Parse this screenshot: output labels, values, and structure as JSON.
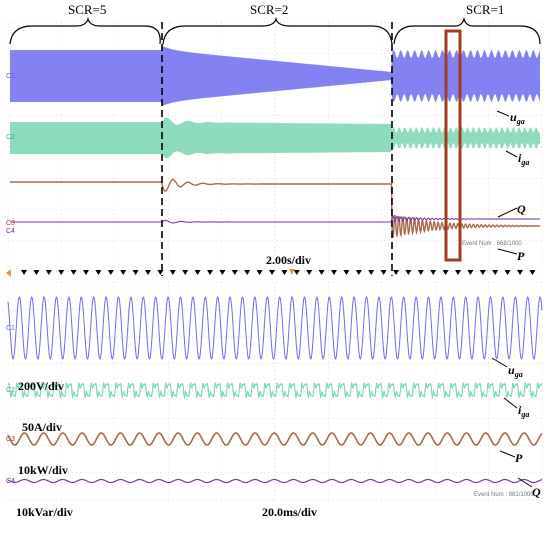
{
  "regions": {
    "scr5": "SCR=5",
    "scr2": "SCR=2",
    "scr1": "SCR=1"
  },
  "top_panel": {
    "timebase": "2.00s/div",
    "event": "Event Num : 668/1000",
    "channel_tags": [
      "C1",
      "C2",
      "C3",
      "C4"
    ]
  },
  "bottom_panel": {
    "timebase": "20.0ms/div",
    "event": "Event Num : 881/1000",
    "scale_labels": [
      "200V/div",
      "50A/div",
      "10kW/div",
      "10kVar/div"
    ],
    "channel_tags": [
      "C1",
      "C2",
      "C3",
      "C4"
    ]
  },
  "signals_top": [
    {
      "base": "u",
      "sub": "ga"
    },
    {
      "base": "i",
      "sub": "ga"
    },
    {
      "base": "Q",
      "sub": ""
    },
    {
      "base": "P",
      "sub": ""
    }
  ],
  "signals_bottom": [
    {
      "base": "u",
      "sub": "ga"
    },
    {
      "base": "i",
      "sub": "ga"
    },
    {
      "base": "P",
      "sub": ""
    },
    {
      "base": "Q",
      "sub": ""
    }
  ],
  "colors": {
    "voltage": "#6d6cf0",
    "current": "#79d7b1",
    "power": "#a86a4c",
    "reactive": "#7a3a9c",
    "highlight_box": "#a23c1e",
    "grid": "#c8c8c8"
  },
  "chart_data": [
    {
      "type": "line",
      "title": "",
      "xlabel": "2.00s/div",
      "series": [
        {
          "name": "uga"
        },
        {
          "name": "iga"
        },
        {
          "name": "Q"
        },
        {
          "name": "P"
        }
      ],
      "grid": true
    },
    {
      "type": "line",
      "title": "",
      "xlabel": "20.0ms/div",
      "series": [
        {
          "name": "uga",
          "scale": "200V/div"
        },
        {
          "name": "iga",
          "scale": "50A/div"
        },
        {
          "name": "P",
          "scale": "10kW/div"
        },
        {
          "name": "Q",
          "scale": "10kVar/div"
        }
      ],
      "grid": true
    }
  ]
}
